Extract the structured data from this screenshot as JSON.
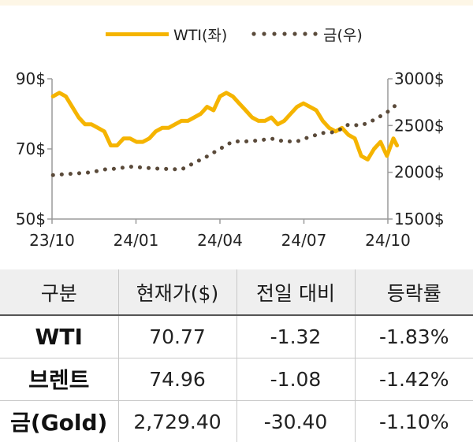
{
  "chart_data": {
    "type": "line",
    "x_ticks": [
      "23/10",
      "24/01",
      "24/04",
      "24/07",
      "24/10"
    ],
    "y_left": {
      "ticks": [
        "90$",
        "70$",
        "50$"
      ],
      "range": [
        50,
        90
      ]
    },
    "y_right": {
      "ticks": [
        "3000$",
        "2500$",
        "2000$",
        "1500$"
      ],
      "range": [
        1500,
        3000
      ]
    },
    "series": [
      {
        "name": "WTI(좌)",
        "axis": "left",
        "style": "solid",
        "color": "#f5b400",
        "points": [
          [
            "2023-10-02",
            85
          ],
          [
            "2023-10-09",
            86
          ],
          [
            "2023-10-16",
            85
          ],
          [
            "2023-10-23",
            82
          ],
          [
            "2023-10-30",
            79
          ],
          [
            "2023-11-06",
            77
          ],
          [
            "2023-11-13",
            77
          ],
          [
            "2023-11-20",
            76
          ],
          [
            "2023-11-27",
            75
          ],
          [
            "2023-12-04",
            71
          ],
          [
            "2023-12-11",
            71
          ],
          [
            "2023-12-18",
            73
          ],
          [
            "2023-12-25",
            73
          ],
          [
            "2024-01-01",
            72
          ],
          [
            "2024-01-08",
            72
          ],
          [
            "2024-01-15",
            73
          ],
          [
            "2024-01-22",
            75
          ],
          [
            "2024-01-29",
            76
          ],
          [
            "2024-02-05",
            76
          ],
          [
            "2024-02-12",
            77
          ],
          [
            "2024-02-19",
            78
          ],
          [
            "2024-02-26",
            78
          ],
          [
            "2024-03-04",
            79
          ],
          [
            "2024-03-11",
            80
          ],
          [
            "2024-03-18",
            82
          ],
          [
            "2024-03-25",
            81
          ],
          [
            "2024-04-01",
            85
          ],
          [
            "2024-04-08",
            86
          ],
          [
            "2024-04-15",
            85
          ],
          [
            "2024-04-22",
            83
          ],
          [
            "2024-04-29",
            81
          ],
          [
            "2024-05-06",
            79
          ],
          [
            "2024-05-13",
            78
          ],
          [
            "2024-05-20",
            78
          ],
          [
            "2024-05-27",
            79
          ],
          [
            "2024-06-03",
            77
          ],
          [
            "2024-06-10",
            78
          ],
          [
            "2024-06-17",
            80
          ],
          [
            "2024-06-24",
            82
          ],
          [
            "2024-07-01",
            83
          ],
          [
            "2024-07-08",
            82
          ],
          [
            "2024-07-15",
            81
          ],
          [
            "2024-07-22",
            78
          ],
          [
            "2024-07-29",
            76
          ],
          [
            "2024-08-05",
            75
          ],
          [
            "2024-08-12",
            76
          ],
          [
            "2024-08-19",
            74
          ],
          [
            "2024-08-26",
            73
          ],
          [
            "2024-09-02",
            68
          ],
          [
            "2024-09-09",
            67
          ],
          [
            "2024-09-16",
            70
          ],
          [
            "2024-09-23",
            72
          ],
          [
            "2024-09-30",
            68
          ],
          [
            "2024-10-07",
            73
          ],
          [
            "2024-10-11",
            71
          ]
        ]
      },
      {
        "name": "금(우)",
        "axis": "right",
        "style": "dotted",
        "color": "#5a4a3a",
        "points": [
          [
            "2023-10-02",
            1970
          ],
          [
            "2023-10-16",
            1980
          ],
          [
            "2023-10-30",
            1990
          ],
          [
            "2023-11-13",
            2000
          ],
          [
            "2023-11-27",
            2030
          ],
          [
            "2023-12-11",
            2040
          ],
          [
            "2023-12-25",
            2060
          ],
          [
            "2024-01-08",
            2050
          ],
          [
            "2024-01-22",
            2040
          ],
          [
            "2024-02-05",
            2035
          ],
          [
            "2024-02-19",
            2030
          ],
          [
            "2024-03-04",
            2100
          ],
          [
            "2024-03-18",
            2170
          ],
          [
            "2024-04-01",
            2250
          ],
          [
            "2024-04-15",
            2330
          ],
          [
            "2024-04-29",
            2330
          ],
          [
            "2024-05-13",
            2340
          ],
          [
            "2024-05-27",
            2360
          ],
          [
            "2024-06-10",
            2330
          ],
          [
            "2024-06-24",
            2330
          ],
          [
            "2024-07-08",
            2380
          ],
          [
            "2024-07-22",
            2420
          ],
          [
            "2024-08-05",
            2430
          ],
          [
            "2024-08-19",
            2510
          ],
          [
            "2024-09-02",
            2500
          ],
          [
            "2024-09-16",
            2560
          ],
          [
            "2024-09-30",
            2640
          ],
          [
            "2024-10-11",
            2729
          ]
        ]
      }
    ]
  },
  "table": {
    "headers": [
      "구분",
      "현재가($)",
      "전일 대비",
      "등락률"
    ],
    "rows": [
      [
        "WTI",
        "70.77",
        "-1.32",
        "-1.83%"
      ],
      [
        "브렌트",
        "74.96",
        "-1.08",
        "-1.42%"
      ],
      [
        "금(Gold)",
        "2,729.40",
        "-30.40",
        "-1.10%"
      ]
    ]
  }
}
